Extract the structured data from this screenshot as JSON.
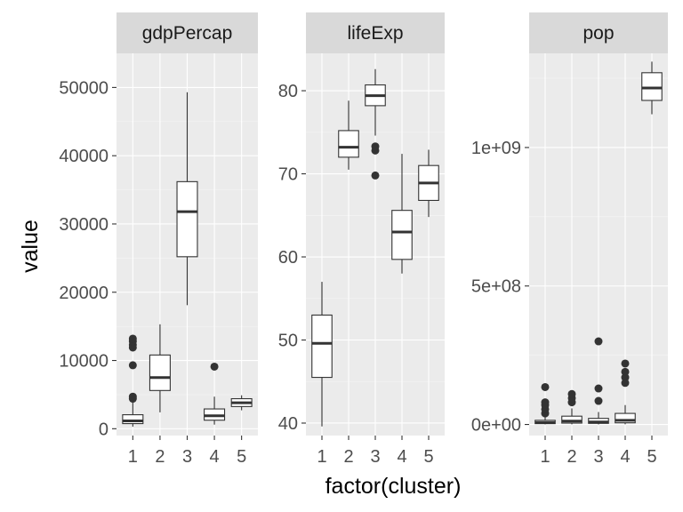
{
  "chart_data": {
    "type": "boxplot",
    "facets": true,
    "xlabel": "factor(cluster)",
    "ylabel": "value",
    "categories": [
      "1",
      "2",
      "3",
      "4",
      "5"
    ],
    "grid": true,
    "panels": [
      {
        "name": "gdpPercap",
        "ylim": [
          -1000,
          55000
        ],
        "yticks": [
          0,
          10000,
          20000,
          30000,
          40000,
          50000
        ],
        "ytick_labels": [
          "0",
          "10000",
          "20000",
          "30000",
          "40000",
          "50000"
        ],
        "boxes": [
          {
            "category": "1",
            "whisker_low": 300,
            "q1": 750,
            "median": 1150,
            "q3": 2050,
            "whisker_high": 3900,
            "outliers": [
              4400,
              4700,
              9300,
              11900,
              12300,
              12800,
              13200
            ]
          },
          {
            "category": "2",
            "whisker_low": 2400,
            "q1": 5600,
            "median": 7500,
            "q3": 10800,
            "whisker_high": 15300,
            "outliers": []
          },
          {
            "category": "3",
            "whisker_low": 18100,
            "q1": 25200,
            "median": 31800,
            "q3": 36200,
            "whisker_high": 49300,
            "outliers": []
          },
          {
            "category": "4",
            "whisker_low": 600,
            "q1": 1250,
            "median": 1900,
            "q3": 2900,
            "whisker_high": 4700,
            "outliers": [
              9100
            ]
          },
          {
            "category": "5",
            "whisker_low": 2700,
            "q1": 3250,
            "median": 3800,
            "q3": 4400,
            "whisker_high": 4900,
            "outliers": []
          }
        ]
      },
      {
        "name": "lifeExp",
        "ylim": [
          38.5,
          84.5
        ],
        "yticks": [
          40,
          50,
          60,
          70,
          80
        ],
        "ytick_labels": [
          "40",
          "50",
          "60",
          "70",
          "80"
        ],
        "boxes": [
          {
            "category": "1",
            "whisker_low": 39.6,
            "q1": 45.5,
            "median": 49.6,
            "q3": 53.0,
            "whisker_high": 57.0,
            "outliers": []
          },
          {
            "category": "2",
            "whisker_low": 70.5,
            "q1": 72.0,
            "median": 73.2,
            "q3": 75.2,
            "whisker_high": 78.8,
            "outliers": []
          },
          {
            "category": "3",
            "whisker_low": 74.6,
            "q1": 78.2,
            "median": 79.4,
            "q3": 80.7,
            "whisker_high": 82.6,
            "outliers": [
              69.8,
              72.8,
              73.3
            ]
          },
          {
            "category": "4",
            "whisker_low": 58.0,
            "q1": 59.7,
            "median": 63.0,
            "q3": 65.6,
            "whisker_high": 72.4,
            "outliers": []
          },
          {
            "category": "5",
            "whisker_low": 64.8,
            "q1": 66.8,
            "median": 68.9,
            "q3": 71.0,
            "whisker_high": 72.9,
            "outliers": []
          }
        ]
      },
      {
        "name": "pop",
        "ylim": [
          -40000000,
          1340000000
        ],
        "yticks": [
          0,
          500000000,
          1000000000
        ],
        "ytick_labels": [
          "0e+00",
          "5e+08",
          "1e+09"
        ],
        "boxes": [
          {
            "category": "1",
            "whisker_low": 400000,
            "q1": 3000000,
            "median": 7000000,
            "q3": 15000000,
            "whisker_high": 30000000,
            "outliers": [
              40000000,
              55000000,
              70000000,
              80000000,
              135000000
            ]
          },
          {
            "category": "2",
            "whisker_low": 500000,
            "q1": 5000000,
            "median": 12000000,
            "q3": 30000000,
            "whisker_high": 58000000,
            "outliers": [
              80000000,
              95000000,
              110000000
            ]
          },
          {
            "category": "3",
            "whisker_low": 300000,
            "q1": 4000000,
            "median": 9000000,
            "q3": 22000000,
            "whisker_high": 45000000,
            "outliers": [
              85000000,
              130000000,
              300000000
            ]
          },
          {
            "category": "4",
            "whisker_low": 700000,
            "q1": 6000000,
            "median": 15000000,
            "q3": 40000000,
            "whisker_high": 70000000,
            "outliers": [
              150000000,
              170000000,
              190000000,
              220000000
            ]
          },
          {
            "category": "5",
            "whisker_low": 1120000000,
            "q1": 1170000000,
            "median": 1215000000,
            "q3": 1270000000,
            "whisker_high": 1310000000,
            "outliers": []
          }
        ]
      }
    ]
  }
}
